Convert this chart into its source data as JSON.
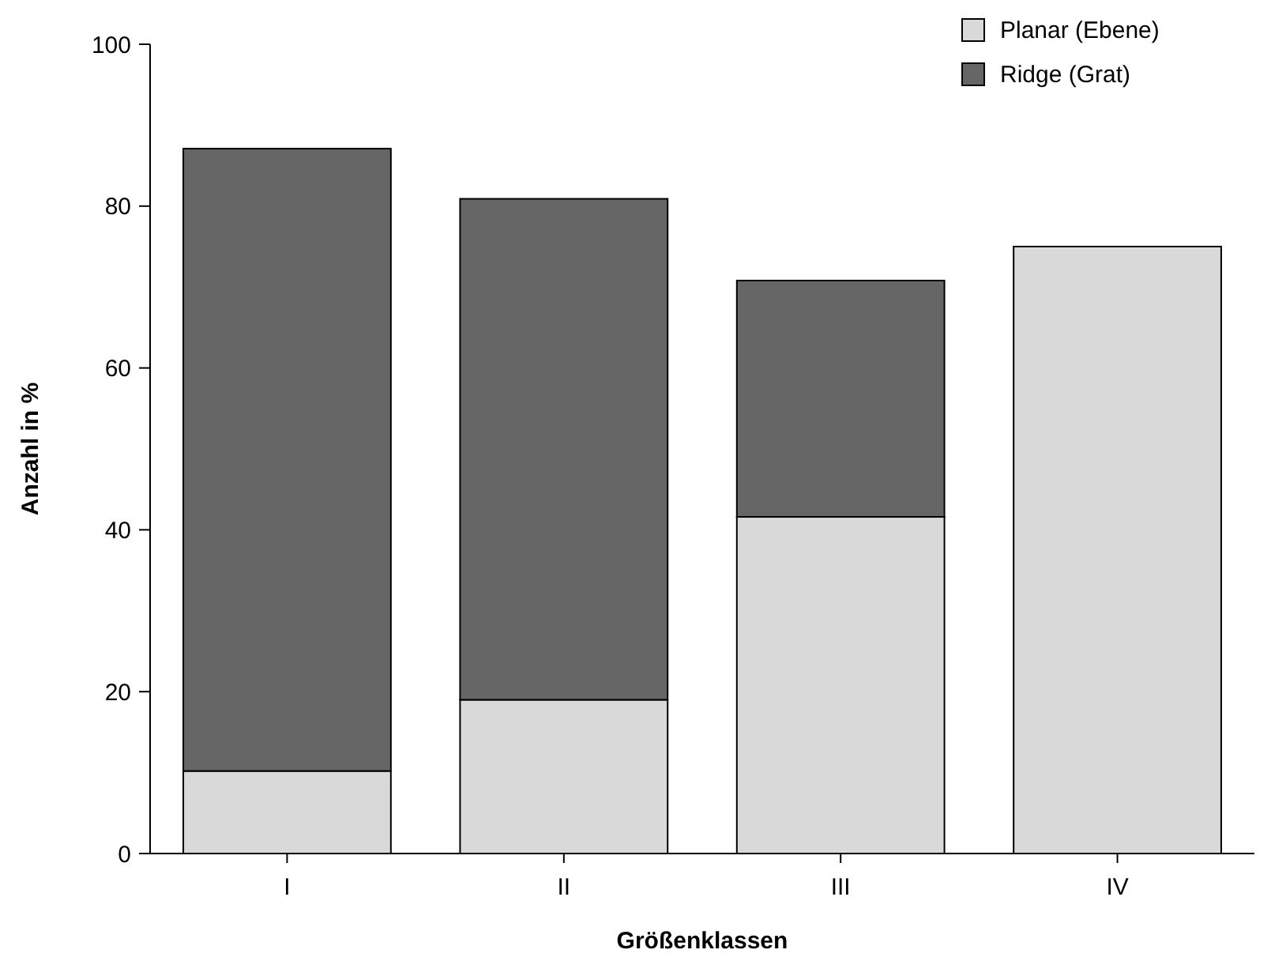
{
  "chart_data": {
    "type": "bar",
    "stacked": true,
    "xlabel": "Größenklassen",
    "ylabel": "Anzahl in %",
    "categories": [
      "I",
      "II",
      "III",
      "IV"
    ],
    "series": [
      {
        "name": "Planar (Ebene)",
        "color": "#d9d9d9",
        "values": [
          10.2,
          19,
          41.6,
          75
        ]
      },
      {
        "name": "Ridge (Grat)",
        "color": "#666666",
        "values": [
          76.9,
          61.9,
          29.2,
          0
        ]
      }
    ],
    "ylim": [
      0,
      100
    ],
    "yticks": [
      0,
      20,
      40,
      60,
      80,
      100
    ],
    "grid": false,
    "legend": "top right"
  }
}
